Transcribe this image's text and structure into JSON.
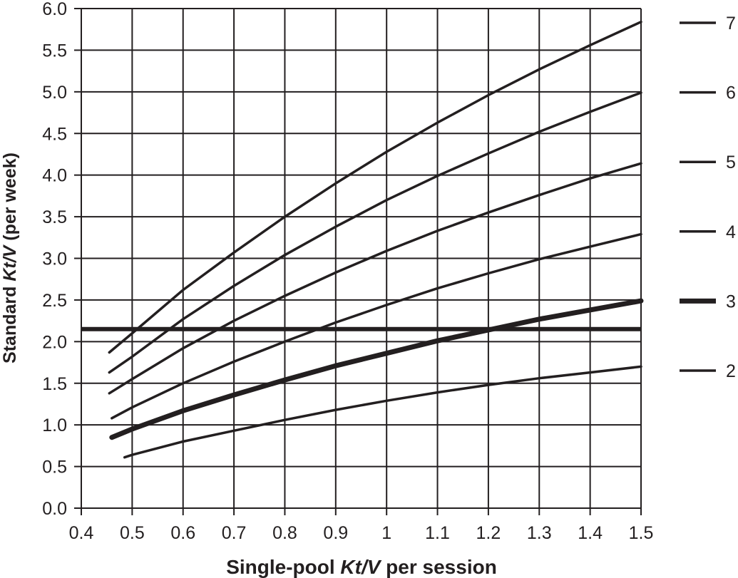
{
  "chart_data": {
    "type": "line",
    "xlabel_parts": [
      "Single-pool ",
      "Kt/V",
      " per session"
    ],
    "ylabel_parts": [
      "Standard ",
      "Kt/V",
      " (per week)"
    ],
    "xlim": [
      0.4,
      1.5
    ],
    "ylim": [
      0.0,
      6.0
    ],
    "grid": true,
    "legend_position": "right",
    "x_ticks": [
      "0.4",
      "0.5",
      "0.6",
      "0.7",
      "0.8",
      "0.9",
      "1",
      "1.1",
      "1.2",
      "1.3",
      "1.4",
      "1.5"
    ],
    "y_ticks": [
      "0.0",
      "0.5",
      "1.0",
      "1.5",
      "2.0",
      "2.5",
      "3.0",
      "3.5",
      "4.0",
      "4.5",
      "5.0",
      "5.5",
      "6.0"
    ],
    "reference_line": {
      "y": 2.15
    },
    "series": [
      {
        "name": "7",
        "x": [
          0.455,
          0.5,
          0.6,
          0.7,
          0.8,
          0.9,
          1.0,
          1.1,
          1.2,
          1.3,
          1.4,
          1.5
        ],
        "y": [
          1.87,
          2.1,
          2.62,
          3.07,
          3.5,
          3.9,
          4.28,
          4.63,
          4.96,
          5.27,
          5.56,
          5.84
        ]
      },
      {
        "name": "6",
        "x": [
          0.455,
          0.5,
          0.6,
          0.7,
          0.8,
          0.9,
          1.0,
          1.1,
          1.2,
          1.3,
          1.4,
          1.5
        ],
        "y": [
          1.63,
          1.82,
          2.27,
          2.67,
          3.04,
          3.38,
          3.7,
          3.99,
          4.26,
          4.52,
          4.76,
          4.99
        ]
      },
      {
        "name": "5",
        "x": [
          0.455,
          0.5,
          0.6,
          0.7,
          0.8,
          0.9,
          1.0,
          1.1,
          1.2,
          1.3,
          1.4,
          1.5
        ],
        "y": [
          1.38,
          1.55,
          1.92,
          2.25,
          2.55,
          2.83,
          3.09,
          3.33,
          3.55,
          3.76,
          3.96,
          4.14
        ]
      },
      {
        "name": "4",
        "x": [
          0.46,
          0.5,
          0.6,
          0.7,
          0.8,
          0.9,
          1.0,
          1.1,
          1.2,
          1.3,
          1.4,
          1.5
        ],
        "y": [
          1.08,
          1.21,
          1.5,
          1.76,
          2.0,
          2.23,
          2.44,
          2.64,
          2.82,
          2.99,
          3.14,
          3.29
        ]
      },
      {
        "name": "3",
        "x": [
          0.46,
          0.5,
          0.6,
          0.7,
          0.8,
          0.9,
          1.0,
          1.1,
          1.2,
          1.3,
          1.4,
          1.5
        ],
        "y": [
          0.85,
          0.95,
          1.17,
          1.36,
          1.54,
          1.71,
          1.86,
          2.01,
          2.14,
          2.27,
          2.38,
          2.49
        ]
      },
      {
        "name": "2",
        "x": [
          0.485,
          0.5,
          0.6,
          0.7,
          0.8,
          0.9,
          1.0,
          1.1,
          1.2,
          1.3,
          1.4,
          1.5
        ],
        "y": [
          0.61,
          0.64,
          0.8,
          0.93,
          1.06,
          1.18,
          1.29,
          1.39,
          1.48,
          1.56,
          1.63,
          1.7
        ]
      }
    ],
    "line_weights": {
      "emphasized": "3",
      "note": "series 3 and the reference line are drawn heavy"
    }
  }
}
